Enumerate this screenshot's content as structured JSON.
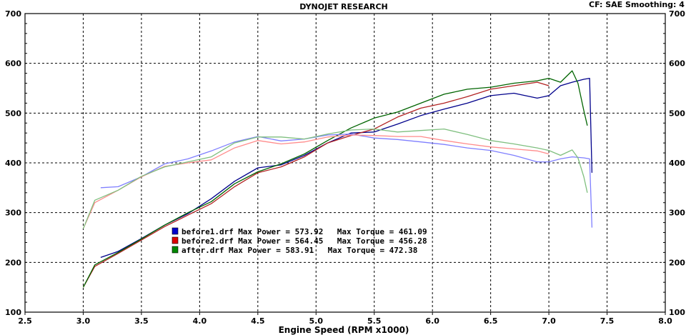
{
  "chart_data": {
    "type": "line",
    "title": "DYNOJET RESEARCH",
    "header_right": "CF: SAE  Smoothing: 4",
    "xlabel": "Engine Speed (RPM x1000)",
    "ylabel": "",
    "xlim": [
      2.5,
      8.0
    ],
    "ylim": [
      100,
      700
    ],
    "x_ticks": [
      "2.5",
      "3.0",
      "3.5",
      "4.0",
      "4.5",
      "5.0",
      "5.5",
      "6.0",
      "6.5",
      "7.0",
      "7.5",
      "8.0"
    ],
    "y_ticks": [
      "100",
      "200",
      "300",
      "400",
      "500",
      "600",
      "700"
    ],
    "grid": true,
    "legend": [
      {
        "file": "before1.drf",
        "power_label": "Max Power = 573.92",
        "torque_label": "Max Torque = 461.09",
        "color": "#0000cc"
      },
      {
        "file": "before2.drf",
        "power_label": "Max Power = 564.45",
        "torque_label": "Max Torque = 456.28",
        "color": "#dd0000"
      },
      {
        "file": "after.drf",
        "power_label": "Max Power = 583.91",
        "torque_label": "Max Torque = 472.38",
        "color": "#008800"
      }
    ],
    "series": [
      {
        "name": "before1.drf",
        "kind": "power",
        "color": "#00008b",
        "x": [
          3.15,
          3.3,
          3.5,
          3.7,
          3.9,
          4.1,
          4.3,
          4.5,
          4.7,
          4.9,
          5.1,
          5.3,
          5.5,
          5.7,
          5.9,
          6.1,
          6.3,
          6.5,
          6.7,
          6.9,
          7.0,
          7.1,
          7.2,
          7.3,
          7.35,
          7.37
        ],
        "y": [
          210,
          222,
          248,
          275,
          298,
          328,
          363,
          390,
          396,
          415,
          440,
          460,
          462,
          478,
          495,
          508,
          520,
          535,
          540,
          530,
          535,
          555,
          562,
          568,
          570,
          380
        ]
      },
      {
        "name": "before2.drf",
        "kind": "power",
        "color": "#b22222",
        "x": [
          3.0,
          3.1,
          3.3,
          3.5,
          3.7,
          3.9,
          4.1,
          4.3,
          4.5,
          4.7,
          4.9,
          5.1,
          5.3,
          5.5,
          5.7,
          5.9,
          6.1,
          6.3,
          6.5,
          6.7,
          6.9,
          7.0
        ],
        "y": [
          150,
          192,
          218,
          245,
          272,
          295,
          318,
          352,
          380,
          392,
          412,
          440,
          455,
          468,
          492,
          510,
          520,
          533,
          548,
          555,
          562,
          555
        ]
      },
      {
        "name": "after.drf",
        "kind": "power",
        "color": "#006400",
        "x": [
          3.0,
          3.1,
          3.3,
          3.5,
          3.7,
          3.9,
          4.1,
          4.3,
          4.5,
          4.7,
          4.9,
          5.1,
          5.3,
          5.5,
          5.7,
          5.9,
          6.1,
          6.3,
          6.5,
          6.7,
          6.9,
          7.0,
          7.1,
          7.2,
          7.25,
          7.3,
          7.33
        ],
        "y": [
          150,
          195,
          220,
          247,
          275,
          300,
          322,
          358,
          382,
          398,
          418,
          445,
          470,
          490,
          502,
          520,
          538,
          548,
          552,
          560,
          565,
          570,
          562,
          585,
          560,
          505,
          475
        ]
      },
      {
        "name": "before1.drf",
        "kind": "torque",
        "color": "#7f7fff",
        "x": [
          3.15,
          3.3,
          3.5,
          3.7,
          3.9,
          4.1,
          4.3,
          4.5,
          4.7,
          4.9,
          5.1,
          5.3,
          5.5,
          5.7,
          5.9,
          6.1,
          6.3,
          6.5,
          6.7,
          6.9,
          7.0,
          7.1,
          7.2,
          7.3,
          7.35,
          7.37
        ],
        "y": [
          350,
          352,
          372,
          398,
          408,
          424,
          442,
          453,
          444,
          448,
          456,
          458,
          450,
          447,
          442,
          437,
          430,
          425,
          415,
          402,
          402,
          408,
          412,
          410,
          408,
          270
        ]
      },
      {
        "name": "before2.drf",
        "kind": "torque",
        "color": "#ff8c8c",
        "x": [
          3.0,
          3.1,
          3.3,
          3.5,
          3.7,
          3.9,
          4.1,
          4.3,
          4.5,
          4.7,
          4.9,
          5.1,
          5.3,
          5.5,
          5.7,
          5.9,
          6.1,
          6.3,
          6.5,
          6.7,
          6.9,
          7.0
        ],
        "y": [
          268,
          320,
          345,
          372,
          393,
          400,
          406,
          430,
          445,
          438,
          442,
          452,
          456,
          455,
          453,
          453,
          445,
          438,
          432,
          428,
          424,
          418
        ]
      },
      {
        "name": "after.drf",
        "kind": "torque",
        "color": "#7fbf7f",
        "x": [
          3.0,
          3.1,
          3.3,
          3.5,
          3.7,
          3.9,
          4.1,
          4.3,
          4.5,
          4.7,
          4.9,
          5.1,
          5.3,
          5.5,
          5.7,
          5.9,
          6.1,
          6.3,
          6.5,
          6.7,
          6.9,
          7.0,
          7.1,
          7.2,
          7.25,
          7.3,
          7.33
        ],
        "y": [
          268,
          325,
          345,
          373,
          392,
          402,
          412,
          440,
          452,
          452,
          448,
          458,
          466,
          468,
          462,
          465,
          468,
          457,
          445,
          438,
          430,
          425,
          415,
          426,
          410,
          372,
          340
        ]
      }
    ]
  }
}
